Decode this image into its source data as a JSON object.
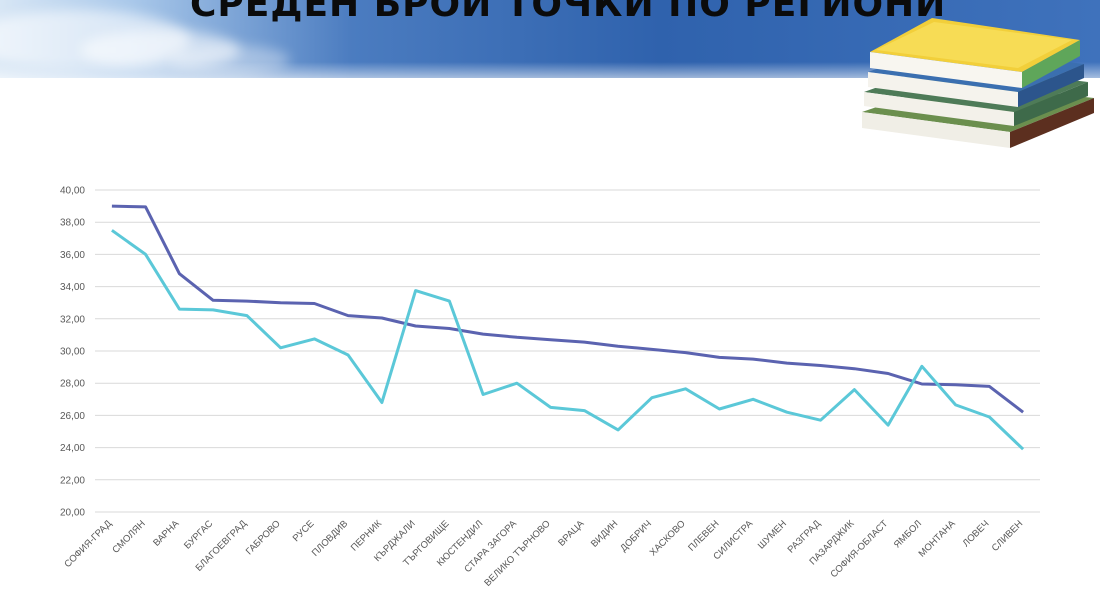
{
  "slide": {
    "title": "СРЕДЕН БРОЙ ТОЧКИ ПО РЕГИОНИ"
  },
  "colors": {
    "series_dark": "#5b63b0",
    "series_light": "#5bc8d8",
    "grid": "#d9d9d9",
    "banner": "#2f62ad"
  },
  "icons": {
    "books": "stack-of-books-icon"
  },
  "chart_data": {
    "type": "line",
    "title": "",
    "xlabel": "",
    "ylabel": "",
    "ylim": [
      20,
      40
    ],
    "yticks": [
      "20,00",
      "22,00",
      "24,00",
      "26,00",
      "28,00",
      "30,00",
      "32,00",
      "34,00",
      "36,00",
      "38,00",
      "40,00"
    ],
    "grid": true,
    "legend": "none",
    "categories": [
      "СОФИЯ-ГРАД",
      "СМОЛЯН",
      "ВАРНА",
      "БУРГАС",
      "БЛАГОЕВГРАД",
      "ГАБРОВО",
      "РУСЕ",
      "ПЛОВДИВ",
      "ПЕРНИК",
      "КЪРДЖАЛИ",
      "ТЪРГОВИЩЕ",
      "КЮСТЕНДИЛ",
      "СТАРА ЗАГОРА",
      "ВЕЛИКО ТЪРНОВО",
      "ВРАЦА",
      "ВИДИН",
      "ДОБРИЧ",
      "ХАСКОВО",
      "ПЛЕВЕН",
      "СИЛИСТРА",
      "ШУМЕН",
      "РАЗГРАД",
      "ПАЗАРДЖИК",
      "СОФИЯ-ОБЛАСТ",
      "ЯМБОЛ",
      "МОНТАНА",
      "ЛОВЕЧ",
      "СЛИВЕН"
    ],
    "series": [
      {
        "values": [
          39.0,
          38.95,
          34.8,
          33.15,
          33.1,
          33.0,
          32.95,
          32.2,
          32.05,
          31.55,
          31.4,
          31.05,
          30.85,
          30.7,
          30.55,
          30.3,
          30.1,
          29.9,
          29.6,
          29.5,
          29.25,
          29.1,
          28.9,
          28.6,
          27.95,
          27.9,
          27.8,
          26.2
        ]
      },
      {
        "values": [
          37.5,
          36.0,
          32.6,
          32.55,
          32.2,
          30.2,
          30.75,
          29.75,
          26.8,
          33.75,
          33.1,
          27.3,
          28.0,
          26.5,
          26.3,
          25.1,
          27.1,
          27.65,
          26.4,
          27.0,
          26.2,
          25.7,
          27.6,
          25.4,
          29.05,
          26.65,
          25.9,
          23.9
        ]
      }
    ]
  }
}
